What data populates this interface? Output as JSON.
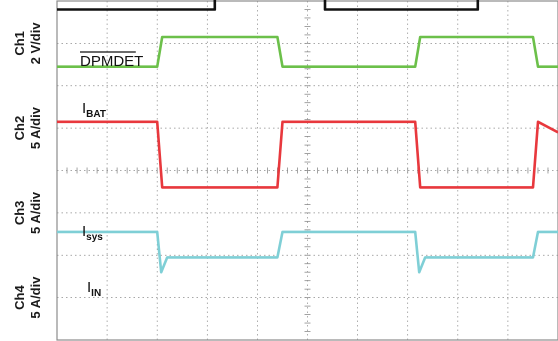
{
  "chart_data": {
    "type": "line",
    "grid": true,
    "x_divisions": 10,
    "y_divisions": 8,
    "colors": {
      "grid": "#8c8c8c",
      "ch1": "#111111",
      "ch2": "#6cc04a",
      "ch3": "#e8383d",
      "ch4": "#7fcfd6"
    },
    "channel_labels": [
      {
        "ch": "Ch1",
        "scale": "2 V/div"
      },
      {
        "ch": "Ch2",
        "scale": "5 A/div"
      },
      {
        "ch": "Ch3",
        "scale": "5 A/div"
      },
      {
        "ch": "Ch4",
        "scale": "5 A/div"
      }
    ],
    "series": [
      {
        "name": "DPMDET",
        "sub": "",
        "color": "#111111",
        "points": [
          [
            0,
            7.8
          ],
          [
            2.8,
            7.8
          ],
          [
            3.15,
            7.8
          ],
          [
            3.15,
            9.7
          ],
          [
            5.35,
            9.7
          ],
          [
            5.35,
            7.8
          ],
          [
            8.0,
            7.8
          ],
          [
            8.4,
            7.8
          ],
          [
            8.4,
            9.7
          ],
          [
            10,
            9.7
          ]
        ]
      },
      {
        "name": "I",
        "sub": "BAT",
        "color": "#6cc04a",
        "points": [
          [
            0,
            6.45
          ],
          [
            2.0,
            6.45
          ],
          [
            2.1,
            7.15
          ],
          [
            4.4,
            7.15
          ],
          [
            4.5,
            6.45
          ],
          [
            7.15,
            6.45
          ],
          [
            7.25,
            7.15
          ],
          [
            9.5,
            7.15
          ],
          [
            9.6,
            6.45
          ],
          [
            10,
            6.45
          ]
        ]
      },
      {
        "name": "I",
        "sub": "sys",
        "color": "#e8383d",
        "points": [
          [
            0,
            5.15
          ],
          [
            2.0,
            5.15
          ],
          [
            2.1,
            3.6
          ],
          [
            4.4,
            3.6
          ],
          [
            4.5,
            5.15
          ],
          [
            7.15,
            5.15
          ],
          [
            7.25,
            3.6
          ],
          [
            9.5,
            3.6
          ],
          [
            9.6,
            5.15
          ],
          [
            10,
            4.9
          ]
        ]
      },
      {
        "name": "I",
        "sub": "IN",
        "color": "#7fcfd6",
        "points": [
          [
            0,
            2.55
          ],
          [
            2.0,
            2.55
          ],
          [
            2.08,
            1.6
          ],
          [
            2.2,
            1.95
          ],
          [
            4.4,
            1.95
          ],
          [
            4.5,
            2.55
          ],
          [
            7.15,
            2.55
          ],
          [
            7.23,
            1.6
          ],
          [
            7.35,
            1.95
          ],
          [
            9.5,
            1.95
          ],
          [
            9.6,
            2.55
          ],
          [
            10,
            2.55
          ]
        ]
      }
    ]
  }
}
